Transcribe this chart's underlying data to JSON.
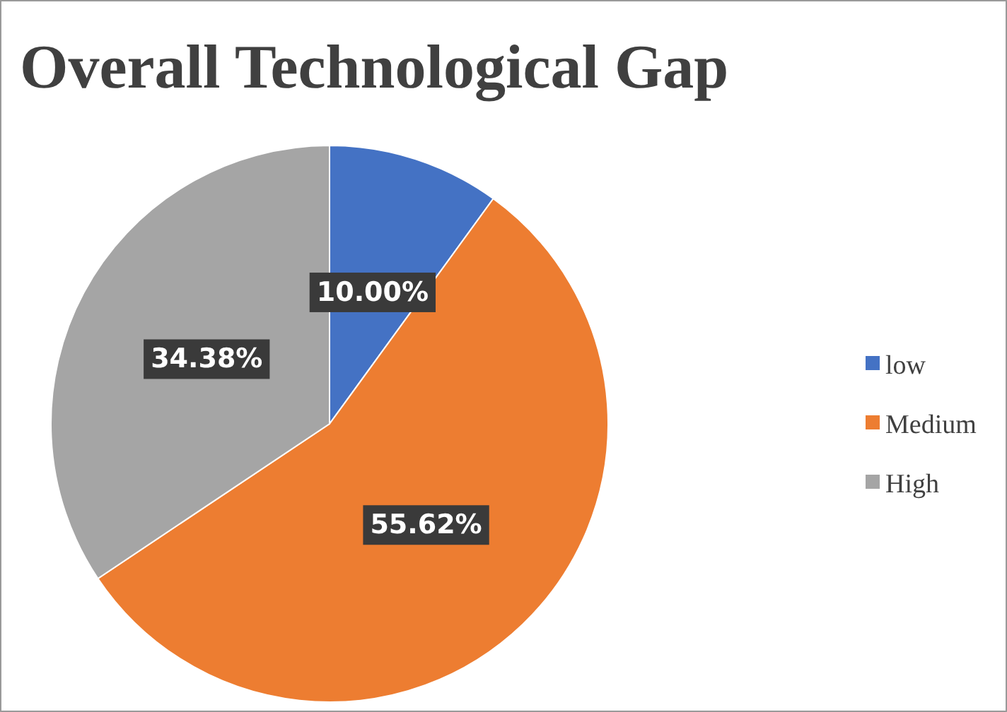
{
  "chart_data": {
    "type": "pie",
    "title": "Overall Technological Gap",
    "categories": [
      "low",
      "Medium",
      "High"
    ],
    "values": [
      10.0,
      55.62,
      34.38
    ],
    "colors": [
      "#4472c4",
      "#ed7d31",
      "#a5a5a5"
    ],
    "value_labels": [
      "10.00%",
      "55.62%",
      "34.38%"
    ],
    "legend": "right"
  }
}
